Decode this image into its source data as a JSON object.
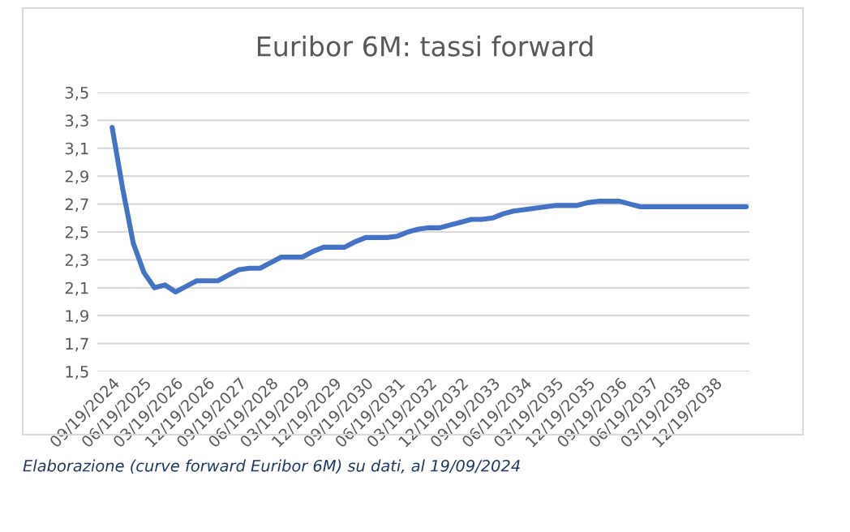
{
  "chart_data": {
    "type": "line",
    "title": "Euribor 6M: tassi forward",
    "categories": [
      "09/19/2024",
      null,
      null,
      "06/19/2025",
      null,
      null,
      "03/19/2026",
      null,
      null,
      "12/19/2026",
      null,
      null,
      "09/19/2027",
      null,
      null,
      "06/19/2028",
      null,
      null,
      "03/19/2029",
      null,
      null,
      "12/19/2029",
      null,
      null,
      "09/19/2030",
      null,
      null,
      "06/19/2031",
      null,
      null,
      "03/19/2032",
      null,
      null,
      "12/19/2032",
      null,
      null,
      "09/19/2033",
      null,
      null,
      "06/19/2034",
      null,
      null,
      "03/19/2035",
      null,
      null,
      "12/19/2035",
      null,
      null,
      "09/19/2036",
      null,
      null,
      "06/19/2037",
      null,
      null,
      "03/19/2038",
      null,
      null,
      "12/19/2038",
      null,
      null,
      null
    ],
    "series": [
      {
        "color": "#4472c4",
        "values": [
          3.25,
          2.81,
          2.42,
          2.21,
          2.1,
          2.12,
          2.07,
          2.11,
          2.15,
          2.15,
          2.15,
          2.19,
          2.23,
          2.24,
          2.24,
          2.28,
          2.32,
          2.32,
          2.32,
          2.36,
          2.39,
          2.39,
          2.39,
          2.43,
          2.46,
          2.46,
          2.46,
          2.47,
          2.5,
          2.52,
          2.53,
          2.53,
          2.55,
          2.57,
          2.59,
          2.59,
          2.6,
          2.63,
          2.65,
          2.66,
          2.67,
          2.68,
          2.69,
          2.69,
          2.69,
          2.71,
          2.72,
          2.72,
          2.72,
          2.7,
          2.68,
          2.68,
          2.68,
          2.68,
          2.68,
          2.68,
          2.68,
          2.68,
          2.68,
          2.68,
          2.68
        ]
      }
    ],
    "ylim": [
      1.5,
      3.5
    ],
    "yticks": [
      {
        "value": 1.5,
        "label": "1,5"
      },
      {
        "value": 1.7,
        "label": "1,7"
      },
      {
        "value": 1.9,
        "label": "1,9"
      },
      {
        "value": 2.1,
        "label": "2,1"
      },
      {
        "value": 2.3,
        "label": "2,3"
      },
      {
        "value": 2.5,
        "label": "2,5"
      },
      {
        "value": 2.7,
        "label": "2,7"
      },
      {
        "value": 2.9,
        "label": "2,9"
      },
      {
        "value": 3.1,
        "label": "3,1"
      },
      {
        "value": 3.3,
        "label": "3,3"
      },
      {
        "value": 3.5,
        "label": "3,5"
      }
    ],
    "grid": "y",
    "line_style": "solid",
    "annotations": [
      "Elaborazione (curve forward Euribor 6M) su dati, al 19/09/2024"
    ]
  }
}
